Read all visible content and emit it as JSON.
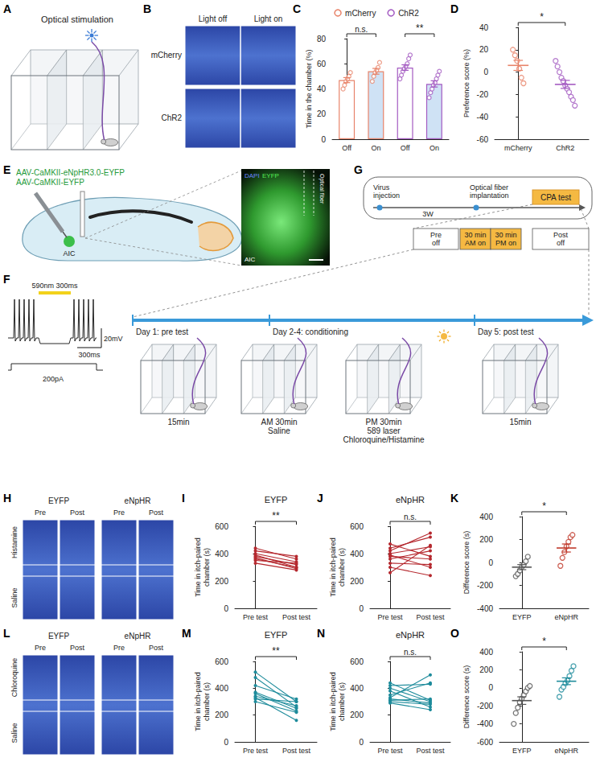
{
  "diagrams": {
    "chamber_schematic": {
      "label": "A",
      "title": "Optical stimulation"
    },
    "heatmaps_light": {
      "label": "B",
      "columns": [
        "Light off",
        "Light on"
      ],
      "rows": [
        "mCherry",
        "ChR2"
      ]
    },
    "virus_injection": {
      "label": "E",
      "viruses": [
        "AAV-CaMKII-eNpHR3.0-EYFP",
        "AAV-CaMKII-EYFP"
      ],
      "region": "AIC",
      "image_stain": [
        "DAPI",
        "EYFP"
      ],
      "image_fiber": "Optical fiber",
      "image_region": "AIC"
    },
    "timeline": {
      "label": "G",
      "steps": [
        "Virus injection",
        "Optical fiber implantation",
        "CPA test"
      ],
      "interval": "3W",
      "sessions": [
        [
          "Pre",
          "off"
        ],
        [
          "30 min",
          "AM on"
        ],
        [
          "30 min",
          "PM on"
        ],
        [
          "Post",
          "off"
        ]
      ]
    },
    "conditioning": {
      "label": "F",
      "stimulus": "590nm 300ms",
      "scale_voltage": "20mV",
      "scale_time": "300ms",
      "current": "200pA",
      "days": [
        "Day 1: pre test",
        "Day 2-4: conditioning",
        "Day 5: post test"
      ],
      "sessions": [
        [
          "15min"
        ],
        [
          "AM 30min",
          "Saline"
        ],
        [
          "PM 30min",
          "589 laser",
          "Chloroquine/Histamine"
        ],
        [
          "15min"
        ]
      ]
    },
    "heatmaps_histamine": {
      "label": "H",
      "groups": [
        "EYFP",
        "eNpHR"
      ],
      "phases": [
        "Pre",
        "Post"
      ],
      "rows": [
        "Histamine",
        "Saline"
      ]
    },
    "heatmaps_chloroquine": {
      "label": "L",
      "groups": [
        "EYFP",
        "eNpHR"
      ],
      "phases": [
        "Pre",
        "Post"
      ],
      "rows": [
        "Chloroquine",
        "Saline"
      ]
    }
  },
  "chart_data": [
    {
      "label": "C",
      "type": "bar",
      "y_label": "Time in the chamber (%)",
      "categories": [
        "Off",
        "On",
        "Off",
        "On"
      ],
      "ylim": [
        0,
        80
      ],
      "yticks": [
        0,
        20,
        40,
        60,
        80
      ],
      "grid": false,
      "legend": "top",
      "series": [
        {
          "name": "mCherry",
          "color": "#e8846a",
          "values": [
            47,
            54,
            null,
            null
          ],
          "errors": [
            2,
            2.3,
            null,
            null
          ],
          "points": [
            [
              40,
              43,
              46,
              48,
              50,
              53
            ],
            [
              46,
              50,
              53,
              55,
              57,
              61
            ],
            null,
            null
          ]
        },
        {
          "name": "ChR2",
          "color": "#a45bc2",
          "values": [
            null,
            null,
            57,
            44
          ],
          "errors": [
            null,
            null,
            2.2,
            2.5
          ],
          "points": [
            null,
            null,
            [
              48,
              51,
              54,
              56,
              58,
              60,
              64,
              67
            ],
            [
              33,
              37,
              40,
              43,
              45,
              48,
              51,
              54
            ]
          ]
        }
      ],
      "annotations": [
        {
          "text": "n.s.",
          "from": 0,
          "to": 1
        },
        {
          "text": "**",
          "from": 2,
          "to": 3
        }
      ]
    },
    {
      "label": "D",
      "type": "scatter",
      "y_label": "Preference score (%)",
      "categories": [
        "mCherry",
        "ChR2"
      ],
      "ylim": [
        -60,
        40
      ],
      "yticks": [
        -60,
        -40,
        -20,
        0,
        20,
        40
      ],
      "grid": false,
      "colors": [
        "#e8846a",
        "#a45bc2"
      ],
      "values": [
        [
          20,
          15,
          10,
          3,
          -5,
          -10
        ],
        [
          10,
          5,
          0,
          -5,
          -8,
          -12,
          -15,
          -18,
          -22,
          -25,
          -30
        ]
      ],
      "means": [
        6,
        -11
      ],
      "errors": [
        4.5,
        3.6
      ],
      "annotations": [
        {
          "text": "*",
          "from": 0,
          "to": 1
        }
      ]
    },
    {
      "label": "I",
      "type": "line",
      "title": "EYFP",
      "y_label": "Time in itch-paired chamber (s)",
      "categories": [
        "Pre test",
        "Post test"
      ],
      "ylim": [
        0,
        600
      ],
      "yticks": [
        0,
        200,
        400,
        600
      ],
      "grid": false,
      "color": "#b5282e",
      "values": [
        [
          440,
          360
        ],
        [
          420,
          380
        ],
        [
          400,
          340
        ],
        [
          390,
          300
        ],
        [
          380,
          320
        ],
        [
          370,
          290
        ],
        [
          360,
          300
        ],
        [
          350,
          330
        ],
        [
          330,
          280
        ]
      ],
      "annotations": [
        {
          "text": "**",
          "from": 0,
          "to": 1
        }
      ]
    },
    {
      "label": "J",
      "type": "line",
      "title": "eNpHR",
      "y_label": "Time in itch-paired chamber (s)",
      "categories": [
        "Pre test",
        "Post test"
      ],
      "ylim": [
        0,
        600
      ],
      "yticks": [
        0,
        200,
        400,
        600
      ],
      "grid": false,
      "color": "#b5282e",
      "values": [
        [
          470,
          380
        ],
        [
          440,
          520
        ],
        [
          420,
          550
        ],
        [
          400,
          450
        ],
        [
          390,
          300
        ],
        [
          380,
          360
        ],
        [
          360,
          420
        ],
        [
          330,
          320
        ],
        [
          300,
          240
        ],
        [
          260,
          460
        ]
      ],
      "annotations": [
        {
          "text": "n.s.",
          "from": 0,
          "to": 1
        }
      ]
    },
    {
      "label": "K",
      "type": "scatter",
      "y_label": "Difference score (s)",
      "categories": [
        "EYFP",
        "eNpHR"
      ],
      "ylim": [
        -400,
        400
      ],
      "yticks": [
        -400,
        -200,
        0,
        200,
        400
      ],
      "grid": false,
      "colors": [
        "#555555",
        "#c0392b"
      ],
      "values": [
        [
          -120,
          -100,
          -70,
          -40,
          -20,
          10,
          50
        ],
        [
          -30,
          40,
          90,
          140,
          180,
          220,
          240
        ]
      ],
      "means": [
        -41,
        126
      ],
      "errors": [
        22,
        35
      ],
      "annotations": [
        {
          "text": "*",
          "from": 0,
          "to": 1
        }
      ]
    },
    {
      "label": "M",
      "type": "line",
      "title": "EYFP",
      "y_label": "Time in itch-paired chamber (s)",
      "categories": [
        "Pre test",
        "Post test"
      ],
      "ylim": [
        0,
        600
      ],
      "yticks": [
        0,
        200,
        400,
        600
      ],
      "grid": false,
      "color": "#1d8b9b",
      "values": [
        [
          520,
          300
        ],
        [
          480,
          260
        ],
        [
          420,
          320
        ],
        [
          370,
          250
        ],
        [
          360,
          230
        ],
        [
          340,
          270
        ],
        [
          330,
          160
        ],
        [
          320,
          300
        ],
        [
          300,
          220
        ]
      ],
      "annotations": [
        {
          "text": "**",
          "from": 0,
          "to": 1
        }
      ]
    },
    {
      "label": "N",
      "type": "line",
      "title": "eNpHR",
      "y_label": "Time in itch-paired chamber (s)",
      "categories": [
        "Pre test",
        "Post test"
      ],
      "ylim": [
        0,
        600
      ],
      "yticks": [
        0,
        200,
        400,
        600
      ],
      "grid": false,
      "color": "#1d8b9b",
      "values": [
        [
          440,
          310
        ],
        [
          420,
          430
        ],
        [
          400,
          300
        ],
        [
          380,
          260
        ],
        [
          350,
          440
        ],
        [
          330,
          500
        ],
        [
          320,
          290
        ],
        [
          310,
          320
        ],
        [
          300,
          280
        ],
        [
          290,
          240
        ]
      ],
      "annotations": [
        {
          "text": "n.s.",
          "from": 0,
          "to": 1
        }
      ]
    },
    {
      "label": "O",
      "type": "scatter",
      "y_label": "Difference score (s)",
      "categories": [
        "EYFP",
        "eNpHR"
      ],
      "ylim": [
        -600,
        400
      ],
      "yticks": [
        -600,
        -400,
        -200,
        0,
        200,
        400
      ],
      "grid": false,
      "colors": [
        "#555555",
        "#1d8b9b"
      ],
      "values": [
        [
          -400,
          -280,
          -220,
          -160,
          -120,
          -80,
          -40,
          0,
          20
        ],
        [
          -100,
          -20,
          10,
          50,
          80,
          130,
          190,
          240
        ]
      ],
      "means": [
        -142,
        73
      ],
      "errors": [
        42,
        38
      ],
      "annotations": [
        {
          "text": "*",
          "from": 0,
          "to": 1
        }
      ]
    }
  ]
}
